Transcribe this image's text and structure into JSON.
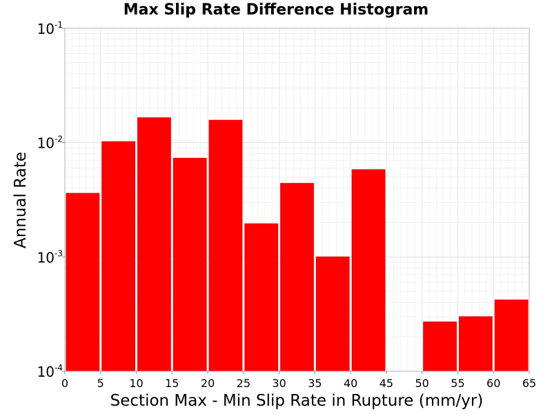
{
  "chart_data": {
    "type": "bar",
    "title": "Max Slip Rate Difference Histogram",
    "xlabel": "Section Max - Min Slip Rate in Rupture (mm/yr)",
    "ylabel": "Annual Rate",
    "x_scale": "linear",
    "y_scale": "log",
    "xlim": [
      0,
      65
    ],
    "ylim": [
      0.0001,
      0.1
    ],
    "bin_width": 5,
    "x_ticks": [
      0,
      5,
      10,
      15,
      20,
      25,
      30,
      35,
      40,
      45,
      50,
      55,
      60,
      65
    ],
    "y_ticks": [
      {
        "base": "10",
        "exp": "-4",
        "value": 0.0001
      },
      {
        "base": "10",
        "exp": "-3",
        "value": 0.001
      },
      {
        "base": "10",
        "exp": "-2",
        "value": 0.01
      },
      {
        "base": "10",
        "exp": "-1",
        "value": 0.1
      }
    ],
    "grid": true,
    "bar_color": "#ff0000",
    "bins": [
      {
        "x0": 0,
        "x1": 5,
        "value": 0.0036
      },
      {
        "x0": 5,
        "x1": 10,
        "value": 0.0102
      },
      {
        "x0": 10,
        "x1": 15,
        "value": 0.0165
      },
      {
        "x0": 15,
        "x1": 20,
        "value": 0.0073
      },
      {
        "x0": 20,
        "x1": 25,
        "value": 0.0157
      },
      {
        "x0": 25,
        "x1": 30,
        "value": 0.00195
      },
      {
        "x0": 30,
        "x1": 35,
        "value": 0.0044
      },
      {
        "x0": 35,
        "x1": 40,
        "value": 0.001
      },
      {
        "x0": 40,
        "x1": 45,
        "value": 0.0058
      },
      {
        "x0": 50,
        "x1": 55,
        "value": 0.00027
      },
      {
        "x0": 55,
        "x1": 60,
        "value": 0.0003
      },
      {
        "x0": 60,
        "x1": 65,
        "value": 0.00042
      }
    ]
  }
}
